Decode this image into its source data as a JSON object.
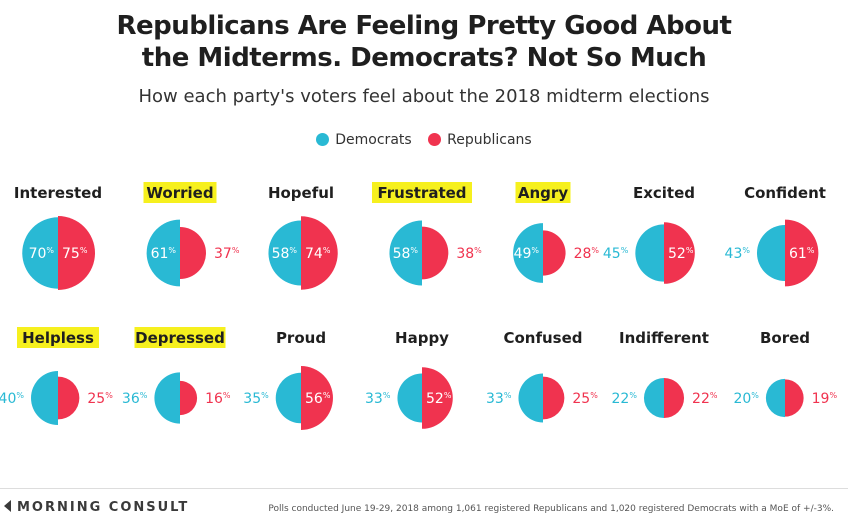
{
  "title_line1": "Republicans Are Feeling Pretty Good About",
  "title_line2": "the Midterms. Democrats? Not So Much",
  "subtitle": "How each party's voters feel about the 2018 midterm elections",
  "colors": {
    "democrats": "#29b9d4",
    "republicans": "#f0334f",
    "highlight": "#f6f01e"
  },
  "footer": {
    "brand": "MORNING CONSULT",
    "source": "Polls conducted June 19-29, 2018 among 1,061 registered Republicans and 1,020 registered Democrats with a MoE of +/-3%."
  },
  "chart_data": {
    "type": "split-circle",
    "title": "Republicans Are Feeling Pretty Good About the Midterms. Democrats? Not So Much",
    "subtitle": "How each party's voters feel about the 2018 midterm elections",
    "unit": "%",
    "legend": {
      "placement": "top-center",
      "entries": [
        "Democrats",
        "Republicans"
      ]
    },
    "series": [
      {
        "name": "Democrats",
        "values": [
          70,
          61,
          58,
          58,
          49,
          45,
          43,
          40,
          36,
          35,
          33,
          33,
          22,
          20
        ]
      },
      {
        "name": "Republicans",
        "values": [
          75,
          37,
          74,
          38,
          28,
          52,
          61,
          25,
          16,
          56,
          52,
          25,
          22,
          19
        ]
      }
    ],
    "categories": [
      "Interested",
      "Worried",
      "Hopeful",
      "Frustrated",
      "Angry",
      "Excited",
      "Confident",
      "Helpless",
      "Depressed",
      "Proud",
      "Happy",
      "Confused",
      "Indifferent",
      "Bored"
    ],
    "highlighted": [
      "Worried",
      "Frustrated",
      "Angry",
      "Helpless",
      "Depressed"
    ]
  }
}
